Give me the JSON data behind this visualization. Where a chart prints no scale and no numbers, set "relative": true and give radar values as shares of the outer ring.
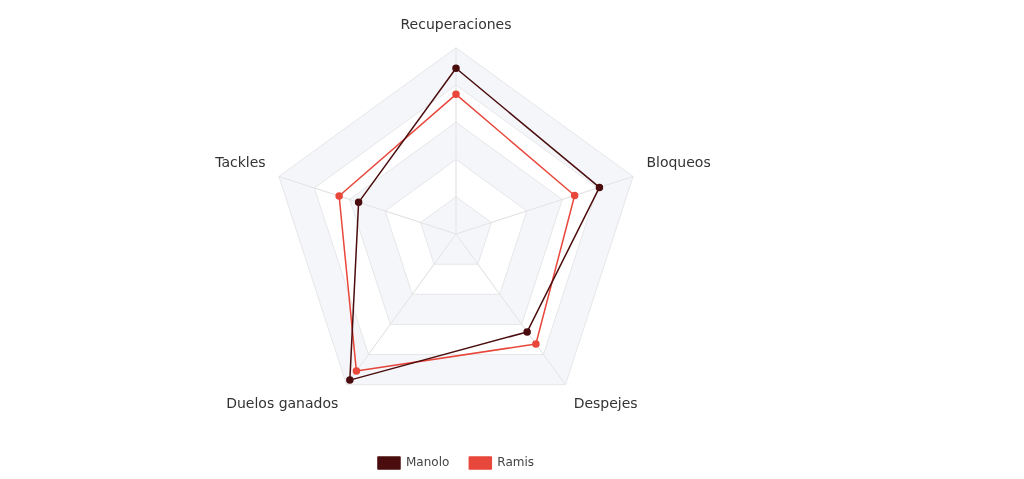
{
  "chart_data": {
    "type": "radar",
    "categories": [
      "Recuperaciones",
      "Bloqueos",
      "Despejes",
      "Duelos ganados",
      "Tackles"
    ],
    "relative": true,
    "grid": true,
    "legend": "bottom",
    "marker": "circle",
    "series": [
      {
        "name": "Manolo",
        "color": "#4a0c0c",
        "values": [
          0.89,
          0.81,
          0.65,
          0.97,
          0.55
        ]
      },
      {
        "name": "Ramis",
        "color": "#e8473b",
        "values": [
          0.75,
          0.67,
          0.73,
          0.91,
          0.66
        ]
      }
    ]
  }
}
